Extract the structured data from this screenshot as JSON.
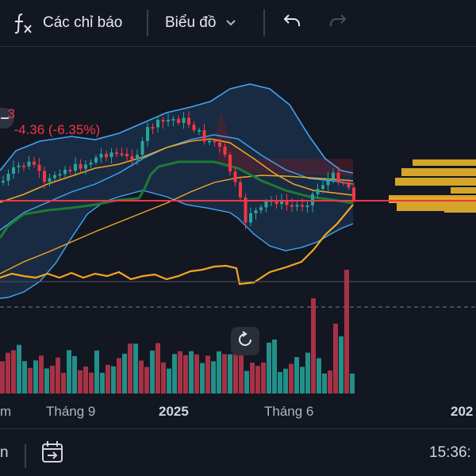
{
  "toolbar": {
    "indicators_label": "Các chỉ báo",
    "chart_type_label": "Biểu đồ"
  },
  "price_change": {
    "prefix": "3",
    "text": "-4.36 (-6.35%)"
  },
  "x_axis": {
    "labels": [
      "m",
      "Tháng 9",
      "2025",
      "Tháng 6",
      "202"
    ]
  },
  "bottom_bar": {
    "left_text": "n",
    "time": "15:36:"
  },
  "colors": {
    "background": "#121722",
    "up": "#26a69a",
    "down": "#f23645",
    "bollinger": "#42a5f5",
    "ma": "#f5a623",
    "baseline": "#1e7a33",
    "price_line": "#f23645",
    "volume_profile": "#d4a52a"
  },
  "icons": [
    "fx-icon",
    "chevron-down-icon",
    "undo-icon",
    "redo-icon",
    "reset-view-icon",
    "goto-date-icon",
    "minus-icon"
  ]
}
